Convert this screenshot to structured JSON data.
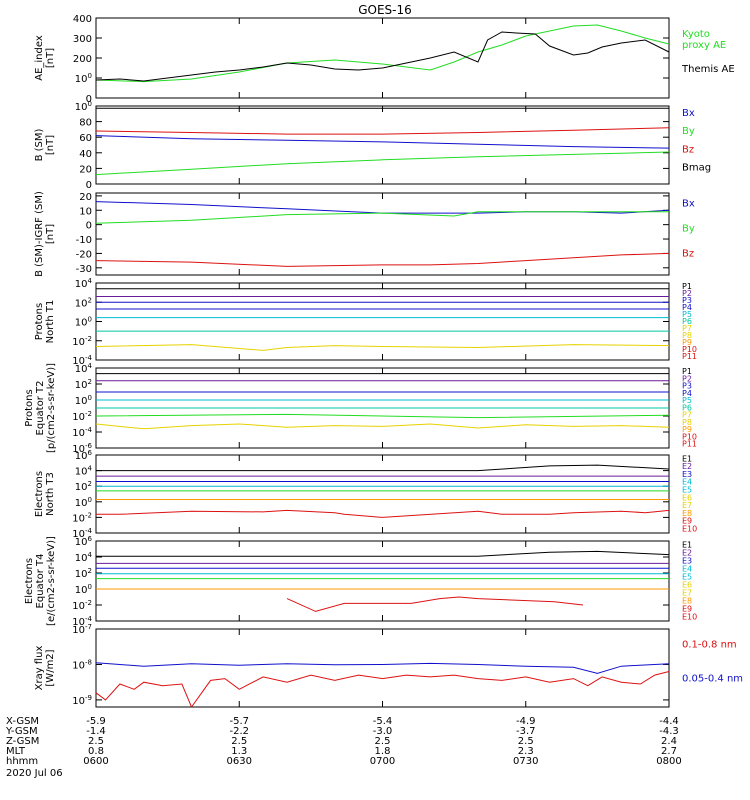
{
  "title": "GOES-16",
  "date": "2020 Jul 06",
  "colors": {
    "black": "#000000",
    "green": "#22dd22",
    "blue": "#1010cc",
    "red": "#dd1111",
    "purple": "#6a1b9a",
    "cyan": "#00bcd4",
    "teal": "#00c8a0",
    "yellow": "#e6d200",
    "orange": "#ff9900"
  },
  "panels": [
    {
      "id": "ae",
      "ylabel": "AE_index\n[nT]",
      "type": "linear",
      "ylim": [
        0,
        400
      ],
      "ticks": [
        "0",
        "100",
        "200",
        "300",
        "400"
      ],
      "legend": [
        {
          "text": "Kyoto\nproxy AE",
          "color": "green"
        },
        {
          "text": "Themis AE",
          "color": "black"
        }
      ]
    },
    {
      "id": "b",
      "ylabel": "B (SM)\n[nT]",
      "type": "linear",
      "ylim": [
        0,
        100
      ],
      "ticks": [
        "0",
        "20",
        "40",
        "60",
        "80",
        "100"
      ],
      "legend": [
        {
          "text": "Bx",
          "color": "blue"
        },
        {
          "text": "By",
          "color": "green"
        },
        {
          "text": "Bz",
          "color": "red"
        },
        {
          "text": "Bmag",
          "color": "black"
        }
      ]
    },
    {
      "id": "dbigrf",
      "ylabel": "B (SM)-IGRF (SM)\n[nT]",
      "type": "linear",
      "ylim": [
        -35,
        22
      ],
      "ticks": [
        "-30",
        "-20",
        "-10",
        "0",
        "10",
        "20"
      ],
      "legend": [
        {
          "text": "Bx",
          "color": "blue"
        },
        {
          "text": "By",
          "color": "green"
        },
        {
          "text": "Bz",
          "color": "red"
        }
      ]
    },
    {
      "id": "pt1",
      "ylabel": "Protons\nNorth T1",
      "type": "log",
      "ylim": [
        -4,
        4
      ],
      "ticks": [
        "10-4",
        "10-2",
        "100",
        "102",
        "104"
      ],
      "legend": [
        {
          "text": "P1",
          "color": "black"
        },
        {
          "text": "P2",
          "color": "purple"
        },
        {
          "text": "P3",
          "color": "blue"
        },
        {
          "text": "P4",
          "color": "blue"
        },
        {
          "text": "P5",
          "color": "cyan"
        },
        {
          "text": "P6",
          "color": "teal"
        },
        {
          "text": "P7",
          "color": "yellow"
        },
        {
          "text": "P8",
          "color": "yellow"
        },
        {
          "text": "P9",
          "color": "orange"
        },
        {
          "text": "P10",
          "color": "red"
        },
        {
          "text": "P11",
          "color": "red"
        }
      ]
    },
    {
      "id": "pt2",
      "ylabel": "Protons\nEquator T2\n[p/(cm2-s-sr-keV)]",
      "type": "log",
      "ylim": [
        -6,
        4
      ],
      "ticks": [
        "10-6",
        "10-4",
        "10-2",
        "100",
        "102",
        "104"
      ],
      "legend": [
        {
          "text": "P1",
          "color": "black"
        },
        {
          "text": "P2",
          "color": "purple"
        },
        {
          "text": "P3",
          "color": "blue"
        },
        {
          "text": "P4",
          "color": "blue"
        },
        {
          "text": "P5",
          "color": "cyan"
        },
        {
          "text": "P6",
          "color": "teal"
        },
        {
          "text": "P7",
          "color": "yellow"
        },
        {
          "text": "P8",
          "color": "yellow"
        },
        {
          "text": "P9",
          "color": "orange"
        },
        {
          "text": "P10",
          "color": "red"
        },
        {
          "text": "P11",
          "color": "red"
        }
      ]
    },
    {
      "id": "et3",
      "ylabel": "Electrons\nNorth T3",
      "type": "log",
      "ylim": [
        -4,
        6
      ],
      "ticks": [
        "10-4",
        "10-2",
        "100",
        "102",
        "104",
        "106"
      ],
      "legend": [
        {
          "text": "E1",
          "color": "black"
        },
        {
          "text": "E2",
          "color": "purple"
        },
        {
          "text": "E3",
          "color": "blue"
        },
        {
          "text": "E4",
          "color": "cyan"
        },
        {
          "text": "E5",
          "color": "cyan"
        },
        {
          "text": "E6",
          "color": "yellow"
        },
        {
          "text": "E7",
          "color": "yellow"
        },
        {
          "text": "E8",
          "color": "orange"
        },
        {
          "text": "E9",
          "color": "red"
        },
        {
          "text": "E10",
          "color": "red"
        }
      ]
    },
    {
      "id": "et4",
      "ylabel": "Electrons\nEquator T4\n[e/(cm2-s-sr-keV)]",
      "type": "log",
      "ylim": [
        -4,
        6
      ],
      "ticks": [
        "10-4",
        "10-2",
        "100",
        "102",
        "104",
        "106"
      ],
      "legend": [
        {
          "text": "E1",
          "color": "black"
        },
        {
          "text": "E2",
          "color": "purple"
        },
        {
          "text": "E3",
          "color": "blue"
        },
        {
          "text": "E4",
          "color": "cyan"
        },
        {
          "text": "E5",
          "color": "cyan"
        },
        {
          "text": "E6",
          "color": "yellow"
        },
        {
          "text": "E7",
          "color": "yellow"
        },
        {
          "text": "E8",
          "color": "orange"
        },
        {
          "text": "E9",
          "color": "red"
        },
        {
          "text": "E10",
          "color": "red"
        }
      ]
    },
    {
      "id": "xray",
      "ylabel": "Xray flux\n[W/m2]",
      "type": "log",
      "ylim": [
        -9.2,
        -7
      ],
      "ticks": [
        "10-9",
        "10-8",
        "10-7"
      ],
      "legend": [
        {
          "text": "0.1-0.8 nm",
          "color": "red"
        },
        {
          "text": "0.05-0.4 nm",
          "color": "blue"
        }
      ]
    }
  ],
  "axis_rows": [
    {
      "label": "X-GSM",
      "values": [
        "-5.9",
        "-5.7",
        "-5.4",
        "-4.9",
        "-4.4"
      ]
    },
    {
      "label": "Y-GSM",
      "values": [
        "-1.4",
        "-2.2",
        "-3.0",
        "-3.7",
        "-4.3"
      ]
    },
    {
      "label": "Z-GSM",
      "values": [
        "2.5",
        "2.5",
        "2.5",
        "2.5",
        "2.4"
      ]
    },
    {
      "label": "MLT",
      "values": [
        "0.8",
        "1.3",
        "1.8",
        "2.3",
        "2.7"
      ]
    },
    {
      "label": "hhmm",
      "values": [
        "0600",
        "0630",
        "0700",
        "0730",
        "0800"
      ]
    }
  ],
  "chart_data": {
    "type": "line",
    "x_unit": "minutes after 0600 UT",
    "xlim": [
      0,
      120
    ],
    "series": [
      {
        "panel": "ae",
        "name": "Kyoto proxy AE",
        "color": "green",
        "x": [
          0,
          10,
          20,
          30,
          40,
          50,
          60,
          70,
          75,
          80,
          85,
          90,
          95,
          100,
          105,
          110,
          115,
          120
        ],
        "y": [
          90,
          82,
          95,
          130,
          175,
          190,
          170,
          140,
          180,
          230,
          265,
          310,
          335,
          360,
          365,
          335,
          300,
          270
        ]
      },
      {
        "panel": "ae",
        "name": "Themis AE",
        "color": "black",
        "x": [
          0,
          5,
          10,
          15,
          20,
          25,
          30,
          35,
          40,
          45,
          50,
          55,
          60,
          65,
          70,
          75,
          80,
          82,
          85,
          88,
          92,
          95,
          100,
          103,
          106,
          110,
          115,
          120
        ],
        "y": [
          90,
          95,
          85,
          100,
          115,
          130,
          140,
          155,
          175,
          165,
          145,
          140,
          150,
          175,
          200,
          230,
          180,
          290,
          330,
          325,
          320,
          260,
          215,
          225,
          255,
          275,
          290,
          230
        ]
      },
      {
        "panel": "b",
        "name": "Bmag",
        "color": "black",
        "x": [
          0,
          120
        ],
        "y": [
          97,
          97
        ]
      },
      {
        "panel": "b",
        "name": "Bz",
        "color": "red",
        "x": [
          0,
          20,
          40,
          60,
          80,
          100,
          120
        ],
        "y": [
          68,
          66,
          64,
          64,
          66,
          69,
          72
        ]
      },
      {
        "panel": "b",
        "name": "Bx",
        "color": "blue",
        "x": [
          0,
          20,
          40,
          60,
          80,
          100,
          120
        ],
        "y": [
          62,
          58,
          56,
          54,
          51,
          48,
          46
        ]
      },
      {
        "panel": "b",
        "name": "By",
        "color": "green",
        "x": [
          0,
          20,
          40,
          60,
          80,
          100,
          120
        ],
        "y": [
          12,
          19,
          26,
          31,
          35,
          38,
          41
        ]
      },
      {
        "panel": "dbigrf",
        "name": "Bx",
        "color": "blue",
        "x": [
          0,
          20,
          40,
          60,
          75,
          80,
          90,
          100,
          110,
          120
        ],
        "y": [
          16,
          14,
          11,
          8,
          8,
          8,
          9,
          9,
          8,
          10
        ]
      },
      {
        "panel": "dbigrf",
        "name": "By",
        "color": "green",
        "x": [
          0,
          20,
          40,
          60,
          75,
          80,
          90,
          100,
          110,
          120
        ],
        "y": [
          1,
          3,
          7,
          8,
          6,
          9,
          9,
          9,
          9,
          9
        ]
      },
      {
        "panel": "dbigrf",
        "name": "Bz",
        "color": "red",
        "x": [
          0,
          20,
          40,
          60,
          70,
          80,
          90,
          100,
          110,
          120
        ],
        "y": [
          -25,
          -26,
          -29,
          -28,
          -28,
          -27,
          -25,
          -23,
          -21,
          -20
        ]
      },
      {
        "panel": "pt1",
        "name": "P1",
        "color": "black",
        "x": [
          0,
          120
        ],
        "y": [
          3.4,
          3.4
        ]
      },
      {
        "panel": "pt1",
        "name": "P2",
        "color": "purple",
        "x": [
          0,
          120
        ],
        "y": [
          2.6,
          2.6
        ]
      },
      {
        "panel": "pt1",
        "name": "P3",
        "color": "blue",
        "x": [
          0,
          120
        ],
        "y": [
          2.0,
          2.0
        ]
      },
      {
        "panel": "pt1",
        "name": "P4",
        "color": "blue",
        "x": [
          0,
          120
        ],
        "y": [
          1.3,
          1.3
        ]
      },
      {
        "panel": "pt1",
        "name": "P5",
        "color": "cyan",
        "x": [
          0,
          120
        ],
        "y": [
          0.4,
          0.4
        ]
      },
      {
        "panel": "pt1",
        "name": "P6",
        "color": "teal",
        "x": [
          0,
          120
        ],
        "y": [
          -1.0,
          -1.0
        ]
      },
      {
        "panel": "pt1",
        "name": "P7",
        "color": "yellow",
        "x": [
          0,
          20,
          35,
          40,
          50,
          60,
          80,
          100,
          120
        ],
        "y": [
          -2.6,
          -2.4,
          -3.0,
          -2.7,
          -2.5,
          -2.6,
          -2.7,
          -2.4,
          -2.5
        ]
      },
      {
        "panel": "pt2",
        "name": "P1",
        "color": "black",
        "x": [
          0,
          120
        ],
        "y": [
          3.3,
          3.3
        ]
      },
      {
        "panel": "pt2",
        "name": "P2",
        "color": "purple",
        "x": [
          0,
          120
        ],
        "y": [
          2.4,
          2.4
        ]
      },
      {
        "panel": "pt2",
        "name": "P3",
        "color": "blue",
        "x": [
          0,
          120
        ],
        "y": [
          1.0,
          1.0
        ]
      },
      {
        "panel": "pt2",
        "name": "P4",
        "color": "cyan",
        "x": [
          0,
          120
        ],
        "y": [
          0.0,
          0.0
        ]
      },
      {
        "panel": "pt2",
        "name": "P5",
        "color": "teal",
        "x": [
          0,
          120
        ],
        "y": [
          -1.0,
          -1.0
        ]
      },
      {
        "panel": "pt2",
        "name": "P6",
        "color": "green",
        "x": [
          0,
          40,
          80,
          120
        ],
        "y": [
          -2.0,
          -1.8,
          -2.2,
          -1.9
        ]
      },
      {
        "panel": "pt2",
        "name": "P7",
        "color": "yellow",
        "x": [
          0,
          10,
          20,
          30,
          40,
          50,
          60,
          70,
          80,
          90,
          100,
          110,
          120
        ],
        "y": [
          -3.0,
          -3.6,
          -3.2,
          -3.0,
          -3.4,
          -3.2,
          -3.3,
          -3.0,
          -3.5,
          -3.1,
          -3.3,
          -3.2,
          -3.4
        ]
      },
      {
        "panel": "et3",
        "name": "E1",
        "color": "black",
        "x": [
          0,
          80,
          95,
          105,
          120
        ],
        "y": [
          4.0,
          4.0,
          4.6,
          4.7,
          4.2
        ]
      },
      {
        "panel": "et3",
        "name": "E2",
        "color": "purple",
        "x": [
          0,
          120
        ],
        "y": [
          3.3,
          3.3
        ]
      },
      {
        "panel": "et3",
        "name": "E3",
        "color": "blue",
        "x": [
          0,
          120
        ],
        "y": [
          2.6,
          2.6
        ]
      },
      {
        "panel": "et3",
        "name": "E4",
        "color": "cyan",
        "x": [
          0,
          120
        ],
        "y": [
          2.0,
          2.0
        ]
      },
      {
        "panel": "et3",
        "name": "E5",
        "color": "green",
        "x": [
          0,
          120
        ],
        "y": [
          1.4,
          1.4
        ]
      },
      {
        "panel": "et3",
        "name": "E6",
        "color": "orange",
        "x": [
          0,
          120
        ],
        "y": [
          0.3,
          0.3
        ]
      },
      {
        "panel": "et3",
        "name": "E8",
        "color": "red",
        "x": [
          0,
          5,
          20,
          35,
          40,
          50,
          52,
          60,
          80,
          85,
          95,
          100,
          110,
          115,
          120
        ],
        "y": [
          -1.6,
          -1.6,
          -1.2,
          -1.3,
          -1.1,
          -1.4,
          -1.6,
          -2.0,
          -1.2,
          -1.6,
          -1.6,
          -1.4,
          -1.2,
          -1.4,
          -1.1
        ]
      },
      {
        "panel": "et4",
        "name": "E1",
        "color": "black",
        "x": [
          0,
          80,
          95,
          105,
          120
        ],
        "y": [
          4.1,
          4.1,
          4.6,
          4.7,
          4.3
        ]
      },
      {
        "panel": "et4",
        "name": "E2",
        "color": "purple",
        "x": [
          0,
          120
        ],
        "y": [
          3.2,
          3.2
        ]
      },
      {
        "panel": "et4",
        "name": "E3",
        "color": "blue",
        "x": [
          0,
          120
        ],
        "y": [
          2.6,
          2.6
        ]
      },
      {
        "panel": "et4",
        "name": "E4",
        "color": "cyan",
        "x": [
          0,
          120
        ],
        "y": [
          1.9,
          1.9
        ]
      },
      {
        "panel": "et4",
        "name": "E5",
        "color": "green",
        "x": [
          0,
          120
        ],
        "y": [
          1.3,
          1.3
        ]
      },
      {
        "panel": "et4",
        "name": "E6",
        "color": "orange",
        "x": [
          0,
          120
        ],
        "y": [
          0.0,
          0.0
        ]
      },
      {
        "panel": "et4",
        "name": "E8",
        "color": "red",
        "x": [
          40,
          46,
          52,
          66,
          72,
          76,
          80,
          96,
          102
        ],
        "y": [
          -1.2,
          -2.8,
          -1.8,
          -1.8,
          -1.2,
          -1.0,
          -1.2,
          -1.6,
          -2.0
        ]
      },
      {
        "panel": "xray",
        "name": "0.05-0.4 nm",
        "color": "blue",
        "x": [
          0,
          5,
          10,
          20,
          30,
          40,
          50,
          60,
          70,
          80,
          90,
          100,
          105,
          110,
          120
        ],
        "y": [
          -7.95,
          -8.0,
          -8.05,
          -7.98,
          -8.02,
          -7.98,
          -8.01,
          -8.0,
          -7.97,
          -8.0,
          -8.05,
          -8.08,
          -8.25,
          -8.05,
          -7.98
        ]
      },
      {
        "panel": "xray",
        "name": "0.1-0.8 nm",
        "color": "red",
        "x": [
          0,
          2,
          5,
          8,
          10,
          14,
          18,
          20,
          24,
          27,
          30,
          35,
          40,
          45,
          50,
          55,
          60,
          65,
          70,
          75,
          80,
          85,
          90,
          95,
          100,
          103,
          106,
          110,
          114,
          117,
          120
        ],
        "y": [
          -8.8,
          -9.0,
          -8.55,
          -8.7,
          -8.5,
          -8.6,
          -8.55,
          -9.2,
          -8.45,
          -8.4,
          -8.7,
          -8.35,
          -8.5,
          -8.3,
          -8.45,
          -8.3,
          -8.4,
          -8.3,
          -8.35,
          -8.3,
          -8.4,
          -8.45,
          -8.35,
          -8.5,
          -8.4,
          -8.6,
          -8.35,
          -8.5,
          -8.55,
          -8.3,
          -8.2
        ]
      }
    ]
  }
}
